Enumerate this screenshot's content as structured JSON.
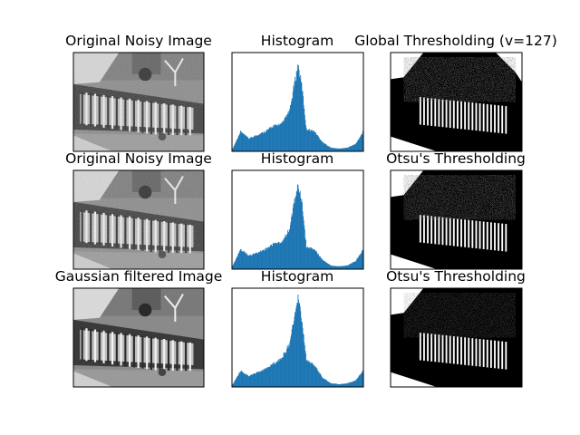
{
  "figure": {
    "titles": {
      "row1": [
        "Original Noisy Image",
        "Histogram",
        "Global Thresholding (v=127)"
      ],
      "row2": [
        "Original Noisy Image",
        "Histogram",
        "Otsu's Thresholding"
      ],
      "row3": [
        "Gaussian filtered Image",
        "Histogram",
        "Otsu's Thresholding"
      ]
    },
    "colors": {
      "histogram": "#1f77b4",
      "frame": "#000000",
      "background": "#ffffff"
    }
  },
  "chart_data": [
    {
      "type": "bar",
      "title": "Histogram",
      "panel": "row1-histogram",
      "x": [
        0,
        16,
        32,
        48,
        64,
        80,
        96,
        112,
        120,
        128,
        136,
        144,
        160,
        176,
        192,
        208,
        224,
        240,
        255
      ],
      "values": [
        0.02,
        0.22,
        0.14,
        0.18,
        0.22,
        0.28,
        0.3,
        0.45,
        0.72,
        0.96,
        0.7,
        0.25,
        0.22,
        0.1,
        0.04,
        0.03,
        0.04,
        0.08,
        0.22
      ]
    },
    {
      "type": "bar",
      "title": "Histogram",
      "panel": "row2-histogram",
      "x": [
        0,
        16,
        32,
        48,
        64,
        80,
        96,
        112,
        120,
        128,
        136,
        144,
        160,
        176,
        192,
        208,
        224,
        240,
        255
      ],
      "values": [
        0.03,
        0.22,
        0.15,
        0.18,
        0.22,
        0.28,
        0.3,
        0.45,
        0.72,
        0.96,
        0.7,
        0.25,
        0.22,
        0.1,
        0.04,
        0.03,
        0.04,
        0.09,
        0.22
      ]
    },
    {
      "type": "bar",
      "title": "Histogram",
      "panel": "row3-histogram",
      "x": [
        0,
        16,
        32,
        48,
        64,
        80,
        96,
        112,
        120,
        128,
        136,
        144,
        160,
        176,
        192,
        208,
        224,
        240,
        255
      ],
      "values": [
        0.02,
        0.18,
        0.12,
        0.16,
        0.2,
        0.26,
        0.32,
        0.48,
        0.75,
        0.98,
        0.72,
        0.3,
        0.24,
        0.1,
        0.04,
        0.03,
        0.04,
        0.07,
        0.18
      ]
    }
  ]
}
